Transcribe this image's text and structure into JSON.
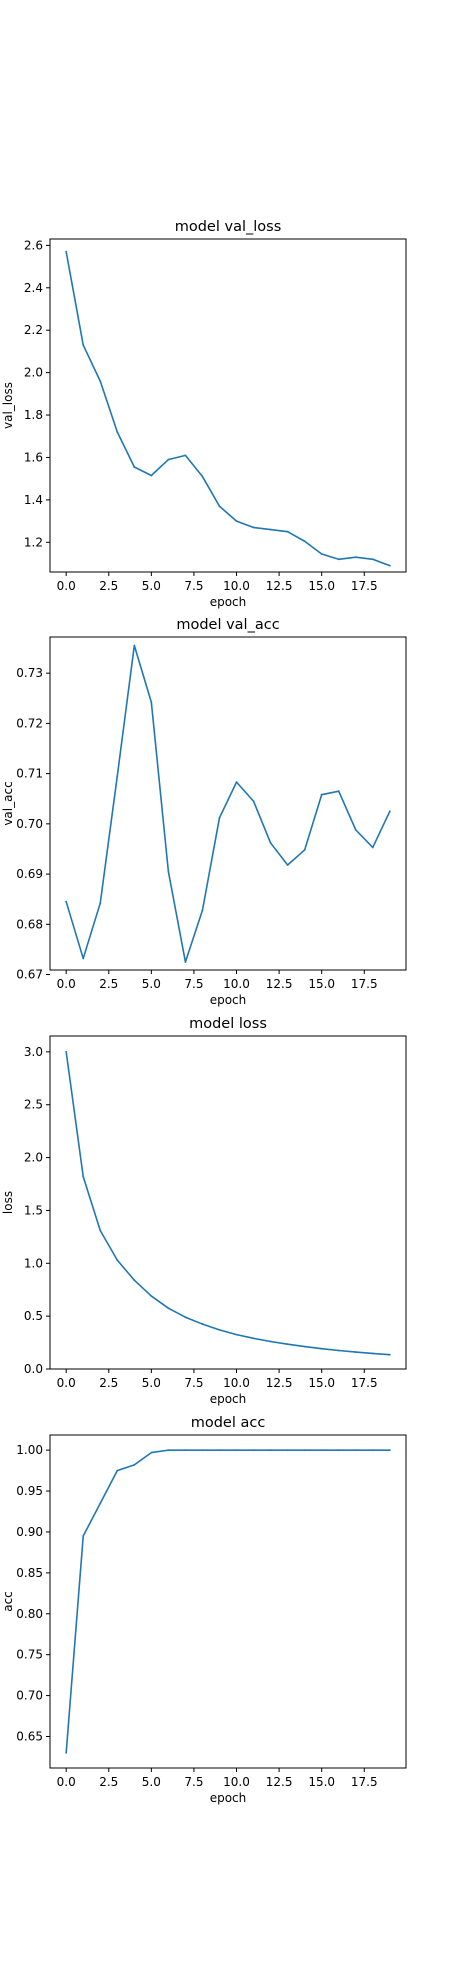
{
  "figure": {
    "background": "#ffffff",
    "line_color": "#1f77b4"
  },
  "chart_data": [
    {
      "type": "line",
      "title": "model val_loss",
      "xlabel": "epoch",
      "ylabel": "val_loss",
      "grid": false,
      "xlim": [
        -0.95,
        19.95
      ],
      "ylim": [
        1.06,
        2.63
      ],
      "xticks": [
        0.0,
        2.5,
        5.0,
        7.5,
        10.0,
        12.5,
        15.0,
        17.5
      ],
      "xtick_labels": [
        "0.0",
        "2.5",
        "5.0",
        "7.5",
        "10.0",
        "12.5",
        "15.0",
        "17.5"
      ],
      "yticks": [
        1.2,
        1.4,
        1.6,
        1.8,
        2.0,
        2.2,
        2.4,
        2.6
      ],
      "ytick_labels": [
        "1.2",
        "1.4",
        "1.6",
        "1.8",
        "2.0",
        "2.2",
        "2.4",
        "2.6"
      ],
      "series": [
        {
          "x": [
            0,
            1,
            2,
            3,
            4,
            5,
            6,
            7,
            8,
            9,
            10,
            11,
            12,
            13,
            14,
            15,
            16,
            17,
            18,
            19
          ],
          "values": [
            2.57,
            2.13,
            1.96,
            1.72,
            1.555,
            1.515,
            1.59,
            1.61,
            1.51,
            1.37,
            1.3,
            1.27,
            1.26,
            1.25,
            1.205,
            1.145,
            1.12,
            1.13,
            1.12,
            1.09
          ]
        }
      ]
    },
    {
      "type": "line",
      "title": "model val_acc",
      "xlabel": "epoch",
      "ylabel": "val_acc",
      "grid": false,
      "xlim": [
        -0.95,
        19.95
      ],
      "ylim": [
        0.6709,
        0.7372
      ],
      "xticks": [
        0.0,
        2.5,
        5.0,
        7.5,
        10.0,
        12.5,
        15.0,
        17.5
      ],
      "xtick_labels": [
        "0.0",
        "2.5",
        "5.0",
        "7.5",
        "10.0",
        "12.5",
        "15.0",
        "17.5"
      ],
      "yticks": [
        0.67,
        0.68,
        0.69,
        0.7,
        0.71,
        0.72,
        0.73
      ],
      "ytick_labels": [
        "0.67",
        "0.68",
        "0.69",
        "0.70",
        "0.71",
        "0.72",
        "0.73"
      ],
      "series": [
        {
          "x": [
            0,
            1,
            2,
            3,
            4,
            5,
            6,
            7,
            8,
            9,
            10,
            11,
            12,
            13,
            14,
            15,
            16,
            17,
            18,
            19
          ],
          "values": [
            0.6845,
            0.6732,
            0.6842,
            0.7095,
            0.7355,
            0.7242,
            0.6905,
            0.6725,
            0.6828,
            0.7012,
            0.7083,
            0.7045,
            0.6962,
            0.6918,
            0.6948,
            0.7058,
            0.7065,
            0.6988,
            0.6953,
            0.7025
          ]
        }
      ]
    },
    {
      "type": "line",
      "title": "model loss",
      "xlabel": "epoch",
      "ylabel": "loss",
      "grid": false,
      "xlim": [
        -0.95,
        19.95
      ],
      "ylim": [
        0.0,
        3.15
      ],
      "xticks": [
        0.0,
        2.5,
        5.0,
        7.5,
        10.0,
        12.5,
        15.0,
        17.5
      ],
      "xtick_labels": [
        "0.0",
        "2.5",
        "5.0",
        "7.5",
        "10.0",
        "12.5",
        "15.0",
        "17.5"
      ],
      "yticks": [
        0.0,
        0.5,
        1.0,
        1.5,
        2.0,
        2.5,
        3.0
      ],
      "ytick_labels": [
        "0.0",
        "0.5",
        "1.0",
        "1.5",
        "2.0",
        "2.5",
        "3.0"
      ],
      "series": [
        {
          "x": [
            0,
            1,
            2,
            3,
            4,
            5,
            6,
            7,
            8,
            9,
            10,
            11,
            12,
            13,
            14,
            15,
            16,
            17,
            18,
            19
          ],
          "values": [
            3.0,
            1.82,
            1.31,
            1.03,
            0.84,
            0.69,
            0.575,
            0.49,
            0.425,
            0.37,
            0.325,
            0.29,
            0.26,
            0.235,
            0.212,
            0.192,
            0.175,
            0.16,
            0.147,
            0.135
          ]
        }
      ]
    },
    {
      "type": "line",
      "title": "model acc",
      "xlabel": "epoch",
      "ylabel": "acc",
      "grid": false,
      "xlim": [
        -0.95,
        19.95
      ],
      "ylim": [
        0.6115,
        1.0185
      ],
      "xticks": [
        0.0,
        2.5,
        5.0,
        7.5,
        10.0,
        12.5,
        15.0,
        17.5
      ],
      "xtick_labels": [
        "0.0",
        "2.5",
        "5.0",
        "7.5",
        "10.0",
        "12.5",
        "15.0",
        "17.5"
      ],
      "yticks": [
        0.65,
        0.7,
        0.75,
        0.8,
        0.85,
        0.9,
        0.95,
        1.0
      ],
      "ytick_labels": [
        "0.65",
        "0.70",
        "0.75",
        "0.80",
        "0.85",
        "0.90",
        "0.95",
        "1.00"
      ],
      "series": [
        {
          "x": [
            0,
            1,
            2,
            3,
            4,
            5,
            6,
            7,
            8,
            9,
            10,
            11,
            12,
            13,
            14,
            15,
            16,
            17,
            18,
            19
          ],
          "values": [
            0.63,
            0.895,
            0.935,
            0.975,
            0.982,
            0.997,
            1.0,
            1.0,
            1.0,
            1.0,
            1.0,
            1.0,
            1.0,
            1.0,
            1.0,
            1.0,
            1.0,
            1.0,
            1.0,
            1.0
          ]
        }
      ]
    }
  ]
}
